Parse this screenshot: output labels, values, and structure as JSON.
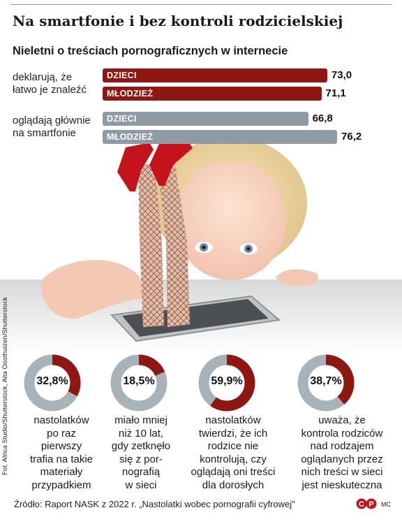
{
  "title": "Na smartfonie i bez kontroli rodzicielskiej",
  "chart_data": [
    {
      "type": "bar",
      "title": "Nieletni o treściach pornograficznych w internecie",
      "orientation": "horizontal",
      "categories": [
        "deklarują, że łatwo je znaleźć",
        "oglądają głównie na smartfonie"
      ],
      "series": [
        {
          "name": "DZIECI",
          "values": [
            73.0,
            66.8
          ]
        },
        {
          "name": "MŁODZIEŻ",
          "values": [
            71.1,
            76.2
          ]
        }
      ],
      "value_labels": [
        [
          "73,0",
          "71,1"
        ],
        [
          "66,8",
          "76,2"
        ]
      ],
      "group_labels": [
        [
          "deklarują, że",
          "łatwo je znaleźć"
        ],
        [
          "oglądają głównie",
          "na smartfonie"
        ]
      ],
      "colors": {
        "group1": "#8e1712",
        "group2": "#8e9ba4"
      },
      "xlim": [
        0,
        80
      ],
      "grid": false
    },
    {
      "type": "pie",
      "style": "donut",
      "items": [
        {
          "value": 32.8,
          "label": "32,8%",
          "text": "nastolatków\npo raz\npierwszy\ntrafia na takie\nmateriały\nprzypadkiem"
        },
        {
          "value": 18.5,
          "label": "18,5%",
          "text": "miało mniej\nniż 10 lat,\ngdy zetknęło\nsię z por-\nnografią\nw sieci"
        },
        {
          "value": 59.9,
          "label": "59,9%",
          "text": "nastolatków\ntwierdzi, że ich\nrodzice nie\nkontrolują, czy\noglądają oni treści\ndla dorosłych"
        },
        {
          "value": 38.7,
          "label": "38,7%",
          "text": "uważa, że\nkontrola rodziców\nnad rodzajem\noglądanych przez\nnich treści w sieci\njest nieskuteczna"
        }
      ],
      "colors": {
        "filled": "#8e1712",
        "rest": "#a7b2b9"
      }
    }
  ],
  "photo_credit": "Fot. Africa Studio/Shutterstock, Alta Oosthuizen/Shutterstock",
  "source": "Źródło: Raport NASK z 2022 r. „Nastolatki wobec pornografii cyfrowej”",
  "logo_text": "CP",
  "author": "MC",
  "icons": {
    "logo": "cp-logo-icon"
  }
}
